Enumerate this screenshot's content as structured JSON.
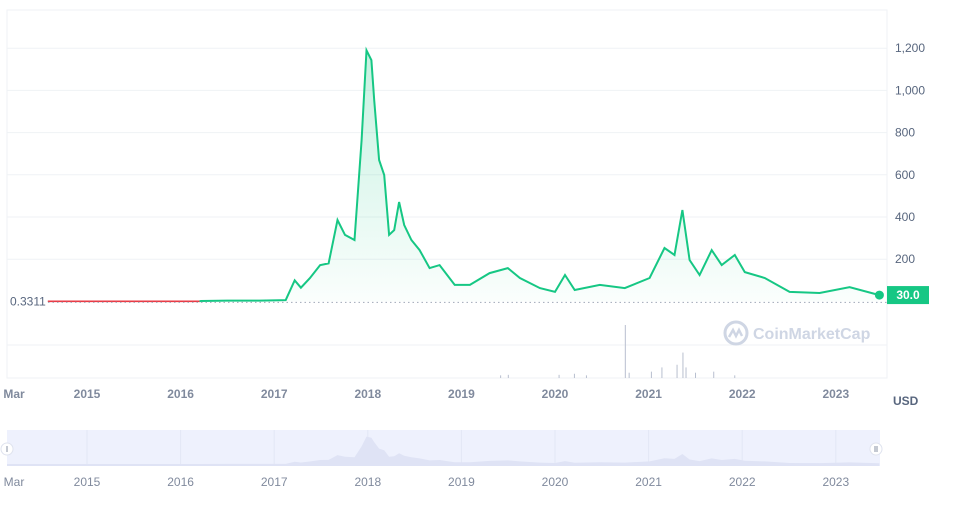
{
  "chart_data": {
    "type": "area",
    "currency_label": "USD",
    "start_value_label": "0.3311",
    "start_value": 0.3311,
    "current_value_label": "30.0",
    "watermark": "CoinMarketCap",
    "y_ticks": [
      "200",
      "400",
      "600",
      "800",
      "1,000",
      "1,200"
    ],
    "y_tick_values": [
      200,
      400,
      600,
      800,
      1000,
      1200
    ],
    "ylim": [
      0,
      1380
    ],
    "x_ticks": [
      "Mar",
      "2015",
      "2016",
      "2017",
      "2018",
      "2019",
      "2020",
      "2021",
      "2022",
      "2023"
    ],
    "x_tick_dates": [
      "2014-03-01",
      "2015-01-01",
      "2016-01-01",
      "2017-01-01",
      "2018-01-01",
      "2019-01-01",
      "2020-01-01",
      "2021-01-01",
      "2022-01-01",
      "2023-01-01"
    ],
    "navigator_ticks": [
      "Mar",
      "2015",
      "2016",
      "2017",
      "2018",
      "2019",
      "2020",
      "2021",
      "2022",
      "2023"
    ],
    "colors": {
      "up": "#16c784",
      "down": "#ea3943",
      "grid": "#eff2f5",
      "navigator": "#eef1fd",
      "watermark": "#cfd6e4"
    },
    "grid": true,
    "series": [
      [
        "2014-08-01",
        0.3311
      ],
      [
        "2015-01-01",
        0.3
      ],
      [
        "2015-08-01",
        0.31
      ],
      [
        "2016-03-15",
        0.32
      ],
      [
        "2016-03-20",
        2
      ],
      [
        "2016-07-01",
        4
      ],
      [
        "2016-11-05",
        4
      ],
      [
        "2017-02-15",
        6
      ],
      [
        "2017-03-22",
        100
      ],
      [
        "2017-04-15",
        65
      ],
      [
        "2017-05-20",
        110
      ],
      [
        "2017-06-29",
        172
      ],
      [
        "2017-08-01",
        180
      ],
      [
        "2017-09-05",
        386
      ],
      [
        "2017-10-04",
        315
      ],
      [
        "2017-11-10",
        291
      ],
      [
        "2017-12-08",
        764
      ],
      [
        "2017-12-27",
        1190
      ],
      [
        "2018-01-15",
        1143
      ],
      [
        "2018-01-26",
        954
      ],
      [
        "2018-02-14",
        670
      ],
      [
        "2018-03-06",
        599
      ],
      [
        "2018-03-25",
        315
      ],
      [
        "2018-04-14",
        338
      ],
      [
        "2018-05-03",
        471
      ],
      [
        "2018-05-23",
        362
      ],
      [
        "2018-06-20",
        291
      ],
      [
        "2018-07-22",
        243
      ],
      [
        "2018-08-30",
        158
      ],
      [
        "2018-10-08",
        172
      ],
      [
        "2018-12-06",
        78
      ],
      [
        "2019-02-03",
        78
      ],
      [
        "2019-04-21",
        134
      ],
      [
        "2019-07-01",
        158
      ],
      [
        "2019-08-17",
        111
      ],
      [
        "2019-11-03",
        63
      ],
      [
        "2020-01-01",
        45
      ],
      [
        "2020-02-09",
        125
      ],
      [
        "2020-03-18",
        54
      ],
      [
        "2020-06-24",
        78
      ],
      [
        "2020-09-30",
        63
      ],
      [
        "2021-01-05",
        111
      ],
      [
        "2021-03-04",
        253
      ],
      [
        "2021-04-12",
        220
      ],
      [
        "2021-05-13",
        433
      ],
      [
        "2021-06-10",
        196
      ],
      [
        "2021-07-19",
        125
      ],
      [
        "2021-09-04",
        243
      ],
      [
        "2021-10-13",
        172
      ],
      [
        "2021-12-03",
        220
      ],
      [
        "2022-01-11",
        139
      ],
      [
        "2022-03-30",
        111
      ],
      [
        "2022-07-05",
        45
      ],
      [
        "2022-10-30",
        40
      ],
      [
        "2023-02-24",
        68
      ],
      [
        "2023-06-20",
        30
      ]
    ],
    "volume_relative": [
      [
        "2019-06-01",
        0.05
      ],
      [
        "2019-07-01",
        0.06
      ],
      [
        "2020-01-15",
        0.06
      ],
      [
        "2020-03-15",
        0.08
      ],
      [
        "2020-05-01",
        0.05
      ],
      [
        "2020-09-30",
        1.0
      ],
      [
        "2020-10-15",
        0.1
      ],
      [
        "2021-01-10",
        0.12
      ],
      [
        "2021-02-20",
        0.2
      ],
      [
        "2021-04-20",
        0.25
      ],
      [
        "2021-05-13",
        0.48
      ],
      [
        "2021-05-25",
        0.2
      ],
      [
        "2021-07-01",
        0.1
      ],
      [
        "2021-09-10",
        0.12
      ],
      [
        "2021-12-01",
        0.05
      ]
    ]
  }
}
